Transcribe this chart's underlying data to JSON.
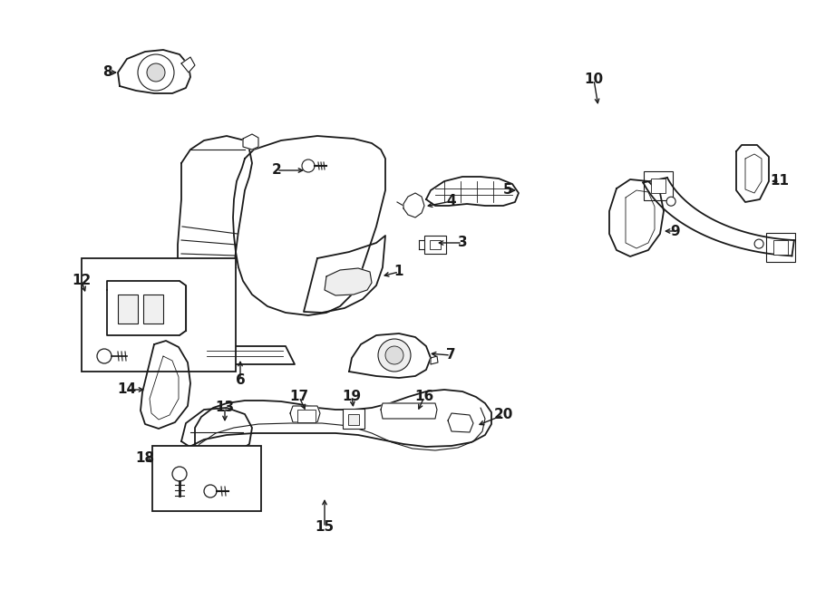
{
  "bg_color": "#ffffff",
  "line_color": "#1a1a1a",
  "lw_main": 1.3,
  "lw_thin": 0.8,
  "label_fontsize": 11,
  "figsize": [
    9.0,
    6.61
  ],
  "dpi": 100
}
